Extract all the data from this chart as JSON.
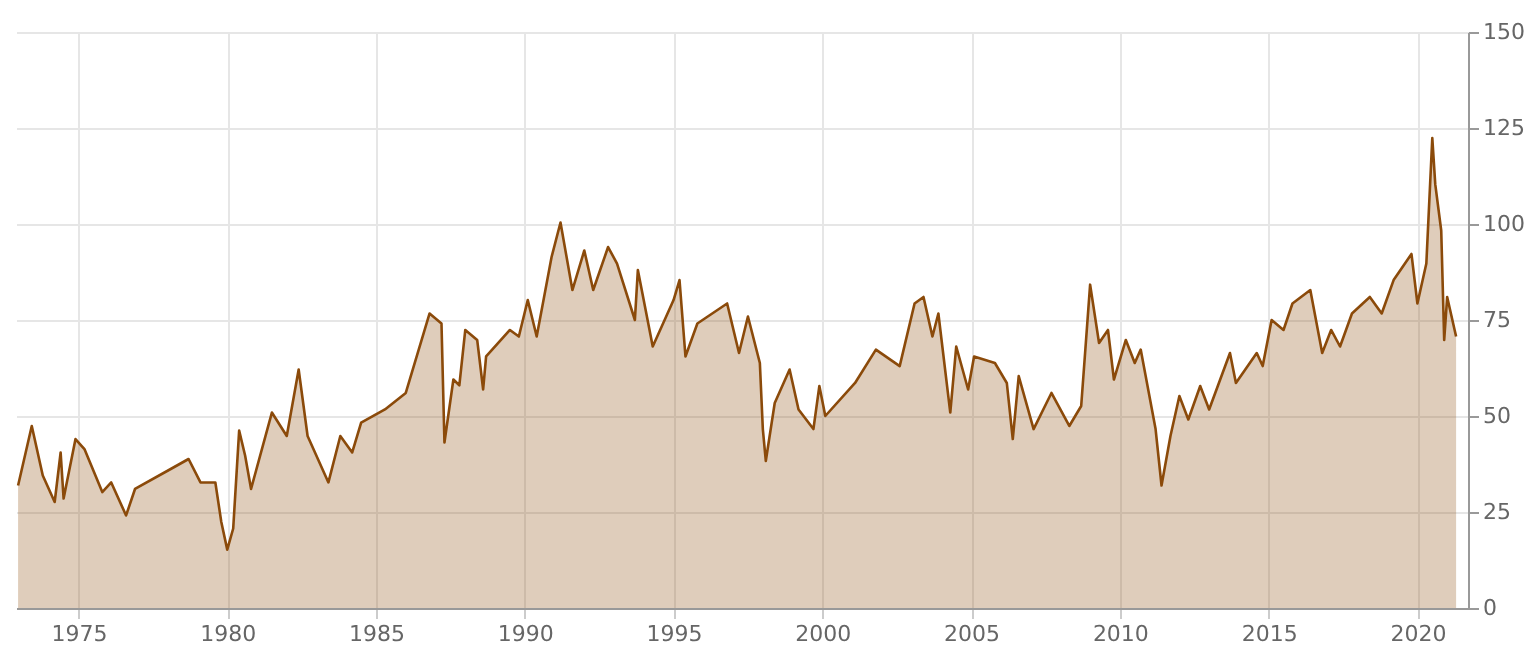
{
  "chart_data": {
    "type": "area",
    "x": [
      1972.97,
      1973.43,
      1973.8,
      1974.2,
      1974.4,
      1974.5,
      1974.9,
      1975.2,
      1975.8,
      1976.1,
      1976.6,
      1976.9,
      1978.1,
      1978.7,
      1979.1,
      1979.6,
      1979.8,
      1980.0,
      1980.2,
      1980.4,
      1980.6,
      1980.8,
      1981.5,
      1982.0,
      1982.4,
      1982.7,
      1983.4,
      1983.8,
      1984.2,
      1984.5,
      1985.3,
      1986.0,
      1986.8,
      1987.2,
      1987.3,
      1987.6,
      1987.8,
      1988.0,
      1988.4,
      1988.6,
      1988.7,
      1989.5,
      1989.8,
      1990.1,
      1990.4,
      1990.9,
      1991.2,
      1991.6,
      1992.0,
      1992.3,
      1992.8,
      1993.1,
      1993.7,
      1993.8,
      1994.3,
      1995.0,
      1995.2,
      1995.4,
      1995.8,
      1996.8,
      1997.2,
      1997.5,
      1997.9,
      1998.0,
      1998.1,
      1998.4,
      1998.9,
      1999.2,
      1999.7,
      1999.9,
      2000.1,
      2001.1,
      2001.8,
      2002.6,
      2003.1,
      2003.4,
      2003.7,
      2003.9,
      2004.3,
      2004.5,
      2004.9,
      2005.1,
      2005.8,
      2006.2,
      2006.4,
      2006.6,
      2007.1,
      2007.7,
      2008.3,
      2008.7,
      2009.0,
      2009.3,
      2009.6,
      2009.8,
      2010.2,
      2010.5,
      2010.7,
      2011.2,
      2011.4,
      2011.7,
      2012.0,
      2012.3,
      2012.7,
      2013.0,
      2013.7,
      2013.9,
      2014.6,
      2014.8,
      2015.1,
      2015.5,
      2015.8,
      2016.4,
      2016.8,
      2017.1,
      2017.4,
      2017.8,
      2018.4,
      2018.8,
      2019.2,
      2019.8,
      2020.0,
      2020.3,
      2020.5,
      2020.6,
      2020.8,
      2020.9,
      2021.0,
      2021.3
    ],
    "series": [
      {
        "color": "#8b4a0a",
        "values": [
          31.9,
          47.4,
          34.5,
          27.6,
          40.5,
          28.5,
          44,
          41.4,
          30.2,
          32.7,
          24.1,
          31,
          36.2,
          38.8,
          32.7,
          32.7,
          22.4,
          15.2,
          20.7,
          46.2,
          39.7,
          31,
          50.9,
          44.8,
          62.1,
          44.8,
          32.7,
          44.8,
          40.5,
          48.3,
          51.7,
          56,
          76.7,
          74.1,
          43.1,
          59.5,
          58,
          72.4,
          69.8,
          56.9,
          65.5,
          72.4,
          70.7,
          80.2,
          70.7,
          91.4,
          100.4,
          82.8,
          93.1,
          82.8,
          94,
          89.7,
          75,
          88,
          68.1,
          80.2,
          85.4,
          65.5,
          74.1,
          79.3,
          66.4,
          75.9,
          63.8,
          46.6,
          38.3,
          53.4,
          62.1,
          51.7,
          46.6,
          57.8,
          50,
          58.6,
          67.3,
          63,
          79.3,
          81,
          70.7,
          76.7,
          50.9,
          68.1,
          56.9,
          65.5,
          63.8,
          58.6,
          44,
          60.4,
          46.6,
          56,
          47.4,
          52.6,
          84.2,
          69,
          72.4,
          59.5,
          69.8,
          63.8,
          67.3,
          46.6,
          31.9,
          44.8,
          55.2,
          49.1,
          57.8,
          51.7,
          66.4,
          58.6,
          66.4,
          63,
          75,
          72.4,
          79.3,
          82.8,
          66.4,
          72.4,
          68.1,
          76.7,
          81,
          76.7,
          85.4,
          92.2,
          79.3,
          89.7,
          122.4,
          110.3,
          98.3,
          69.8,
          81,
          70.7
        ]
      }
    ],
    "xlim": [
      1972.9,
      2021.7
    ],
    "xticks": [
      1975,
      1980,
      1985,
      1990,
      1995,
      2000,
      2005,
      2010,
      2015,
      2020
    ],
    "ylim": [
      0,
      150
    ],
    "yticks": [
      0,
      25,
      50,
      75,
      100,
      125,
      150
    ],
    "grid": true
  }
}
